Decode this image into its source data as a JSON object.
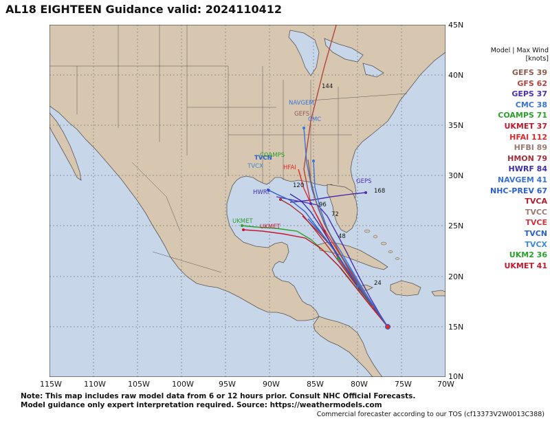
{
  "title": "AL18 EIGHTEEN Guidance valid: 2024110412",
  "axes": {
    "lon_labels": [
      "115W",
      "110W",
      "105W",
      "100W",
      "95W",
      "90W",
      "85W",
      "80W",
      "75W",
      "70W"
    ],
    "lat_labels": [
      "45N",
      "40N",
      "35N",
      "30N",
      "25N",
      "20N",
      "15N",
      "10N"
    ]
  },
  "legend": {
    "header_line1": "Model | Max Wind",
    "header_line2": "[knots]",
    "entries": [
      {
        "label": "GEFS 39",
        "color": "#8c5a4a"
      },
      {
        "label": "GFS 62",
        "color": "#b3423e"
      },
      {
        "label": "GEPS 37",
        "color": "#4a2fb0"
      },
      {
        "label": "CMC 38",
        "color": "#3a73d6"
      },
      {
        "label": "COAMPS 71",
        "color": "#2aa02a"
      },
      {
        "label": "UKMET 37",
        "color": "#c0192e"
      },
      {
        "label": "HFAI 112",
        "color": "#e0282c"
      },
      {
        "label": "HFBI 89",
        "color": "#9a7a72"
      },
      {
        "label": "HMON 79",
        "color": "#a0303a"
      },
      {
        "label": "HWRF 84",
        "color": "#3a2fa8"
      },
      {
        "label": "NAVGEM 41",
        "color": "#3a73d6"
      },
      {
        "label": "NHC-PREV 67",
        "color": "#2a5fd0"
      },
      {
        "label": "TVCA",
        "color": "#b01e2e"
      },
      {
        "label": "TVCC",
        "color": "#9a7a72"
      },
      {
        "label": "TVCE",
        "color": "#d8303a"
      },
      {
        "label": "TVCN",
        "color": "#2a5fd0"
      },
      {
        "label": "TVCX",
        "color": "#3a8ad8"
      },
      {
        "label": "UKM2 36",
        "color": "#2aa02a"
      },
      {
        "label": "UKMET 41",
        "color": "#c0192e"
      }
    ]
  },
  "map_labels": [
    {
      "text": "NAVGEM",
      "color": "#3a73d6"
    },
    {
      "text": "CMC",
      "color": "#3a73d6"
    },
    {
      "text": "GEFS",
      "color": "#8c5a4a"
    },
    {
      "text": "TVCN",
      "color": "#2a5fd0"
    },
    {
      "text": "TVCX",
      "color": "#3a8ad8"
    },
    {
      "text": "COAMPS",
      "color": "#2aa02a"
    },
    {
      "text": "HFAI",
      "color": "#e0282c"
    },
    {
      "text": "HWRF",
      "color": "#3a2fa8"
    },
    {
      "text": "GEPS",
      "color": "#4a2fb0"
    },
    {
      "text": "UKMET",
      "color": "#c0192e"
    },
    {
      "text": "UKMET",
      "color": "#2aa02a"
    },
    {
      "text": "144",
      "color": "#111111"
    },
    {
      "text": "168",
      "color": "#111111"
    },
    {
      "text": "120",
      "color": "#111111"
    },
    {
      "text": "96",
      "color": "#111111"
    },
    {
      "text": "72",
      "color": "#111111"
    },
    {
      "text": "48",
      "color": "#111111"
    },
    {
      "text": "24",
      "color": "#111111"
    }
  ],
  "colors": {
    "ocean": "#c8d6ea",
    "land": "#d8c7b0",
    "border": "#444444",
    "grid": "#7a7a7a"
  },
  "note_line1": "Note: This map includes raw model data from 6 or 12 hours prior. Consult NHC Official Forecasts.",
  "note_line2": "Model guidance only expert interpretation required. Source: https://weathermodels.com",
  "credit": "Commercial forecaster according to our TOS (cf13373V2W0013C388)"
}
